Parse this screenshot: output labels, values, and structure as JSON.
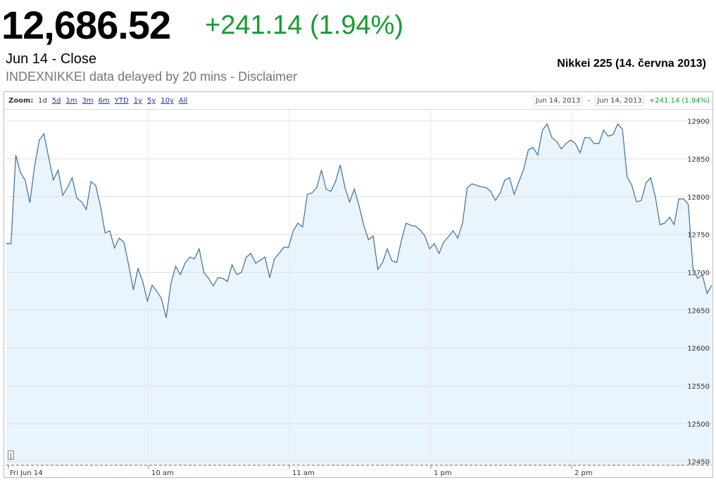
{
  "header": {
    "price": "12,686.52",
    "change": "+241.14 (1.94%)",
    "close_label": "Jun 14 - Close",
    "delay_note": "INDEXNIKKEI data delayed by 20 mins - Disclaimer",
    "caption": "Nikkei 225 (14. června 2013)"
  },
  "toolbar": {
    "zoom_label": "Zoom:",
    "zoom_options": [
      "1d",
      "5d",
      "1m",
      "3m",
      "6m",
      "YTD",
      "1y",
      "5y",
      "10y",
      "All"
    ],
    "active_zoom": "1d",
    "range_start": "Jun 14, 2013",
    "range_separator": "-",
    "range_end": "Jun 14, 2013",
    "range_change": "+241.14 (1.94%)"
  },
  "colors": {
    "line": "#3a6f9c",
    "fill": "#e9f4fd",
    "positive": "#179c32",
    "grid": "#dddddd"
  },
  "chart_data": {
    "type": "area",
    "xlabel": "",
    "ylabel": "",
    "ylim": [
      12445,
      12915
    ],
    "y_ticks": [
      12450,
      12500,
      12550,
      12600,
      12650,
      12700,
      12750,
      12800,
      12850,
      12900
    ],
    "x_ticks": [
      "Fri Jun 14",
      "10 am",
      "11 am",
      "1 pm",
      "2 pm"
    ],
    "grid": true,
    "series": [
      {
        "name": "",
        "values": [
          12738,
          12738,
          12855,
          12832,
          12822,
          12792,
          12840,
          12875,
          12883,
          12852,
          12822,
          12835,
          12802,
          12812,
          12825,
          12798,
          12793,
          12783,
          12820,
          12815,
          12788,
          12752,
          12755,
          12732,
          12745,
          12740,
          12710,
          12677,
          12705,
          12688,
          12662,
          12683,
          12675,
          12665,
          12640,
          12685,
          12708,
          12697,
          12712,
          12720,
          12718,
          12731,
          12700,
          12692,
          12682,
          12693,
          12692,
          12688,
          12710,
          12697,
          12700,
          12720,
          12725,
          12712,
          12716,
          12720,
          12693,
          12718,
          12725,
          12733,
          12733,
          12755,
          12765,
          12760,
          12803,
          12805,
          12812,
          12835,
          12810,
          12807,
          12820,
          12842,
          12812,
          12793,
          12810,
          12788,
          12762,
          12743,
          12748,
          12704,
          12713,
          12731,
          12715,
          12713,
          12742,
          12765,
          12762,
          12761,
          12756,
          12748,
          12731,
          12738,
          12725,
          12740,
          12747,
          12755,
          12745,
          12765,
          12812,
          12817,
          12815,
          12813,
          12812,
          12807,
          12795,
          12805,
          12822,
          12825,
          12803,
          12820,
          12836,
          12862,
          12865,
          12855,
          12888,
          12896,
          12878,
          12873,
          12863,
          12870,
          12875,
          12870,
          12858,
          12878,
          12878,
          12870,
          12870,
          12888,
          12880,
          12882,
          12896,
          12889,
          12826,
          12815,
          12793,
          12795,
          12818,
          12825,
          12800,
          12763,
          12765,
          12773,
          12763,
          12797,
          12797,
          12790,
          12705,
          12692,
          12697,
          12672,
          12683
        ]
      }
    ]
  }
}
